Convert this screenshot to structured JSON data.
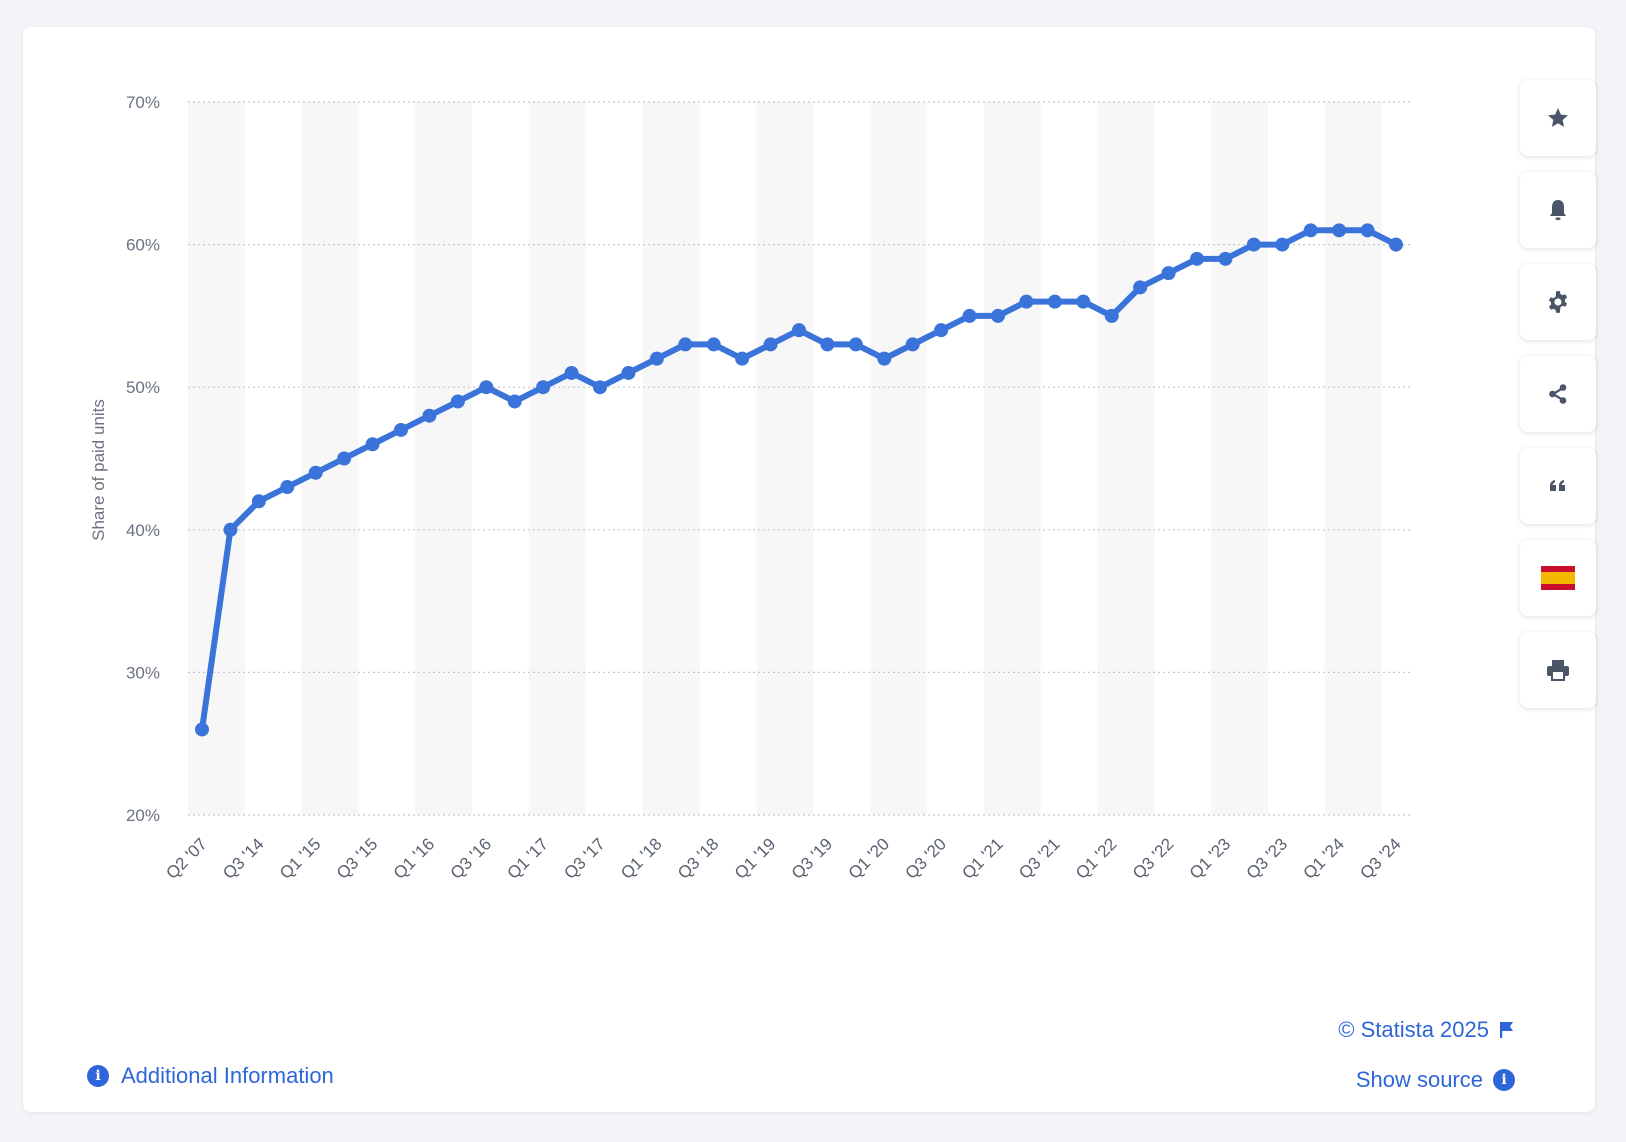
{
  "chart_data": {
    "type": "line",
    "ylabel": "Share of paid units",
    "ylim": [
      20,
      70
    ],
    "yticks": [
      "70%",
      "60%",
      "50%",
      "40%",
      "30%",
      "20%"
    ],
    "ytick_values": [
      70,
      60,
      50,
      40,
      30,
      20
    ],
    "xtick_labels": [
      "Q2 '07",
      "Q3 '14",
      "Q1 '15",
      "Q3 '15",
      "Q1 '16",
      "Q3 '16",
      "Q1 '17",
      "Q3 '17",
      "Q1 '18",
      "Q3 '18",
      "Q1 '19",
      "Q3 '19",
      "Q1 '20",
      "Q3 '20",
      "Q1 '21",
      "Q3 '21",
      "Q1 '22",
      "Q3 '22",
      "Q1 '23",
      "Q3 '23",
      "Q1 '24",
      "Q3 '24"
    ],
    "categories": [
      "Q2 '07",
      "Q2 '14",
      "Q3 '14",
      "Q4 '14",
      "Q1 '15",
      "Q2 '15",
      "Q3 '15",
      "Q4 '15",
      "Q1 '16",
      "Q2 '16",
      "Q3 '16",
      "Q4 '16",
      "Q1 '17",
      "Q2 '17",
      "Q3 '17",
      "Q4 '17",
      "Q1 '18",
      "Q2 '18",
      "Q3 '18",
      "Q4 '18",
      "Q1 '19",
      "Q2 '19",
      "Q3 '19",
      "Q4 '19",
      "Q1 '20",
      "Q2 '20",
      "Q3 '20",
      "Q4 '20",
      "Q1 '21",
      "Q2 '21",
      "Q3 '21",
      "Q4 '21",
      "Q1 '22",
      "Q2 '22",
      "Q3 '22",
      "Q4 '22",
      "Q1 '23",
      "Q2 '23",
      "Q3 '23",
      "Q4 '23",
      "Q1 '24",
      "Q2 '24",
      "Q3 '24"
    ],
    "series": [
      {
        "values": [
          26,
          40,
          42,
          43,
          44,
          45,
          46,
          47,
          48,
          49,
          50,
          49,
          50,
          51,
          50,
          51,
          52,
          53,
          53,
          52,
          53,
          54,
          53,
          53,
          52,
          53,
          54,
          55,
          55,
          56,
          56,
          56,
          55,
          57,
          58,
          59,
          59,
          60,
          60,
          61,
          61,
          61,
          60
        ]
      }
    ],
    "grid": true,
    "line_color": "#3a73d9"
  },
  "toolbar": [
    {
      "icon": "star-icon"
    },
    {
      "icon": "bell-icon"
    },
    {
      "icon": "gear-icon"
    },
    {
      "icon": "share-icon"
    },
    {
      "icon": "quote-icon"
    },
    {
      "icon": "spain-flag-icon"
    },
    {
      "icon": "print-icon"
    }
  ],
  "footer": {
    "credit": "© Statista 2025",
    "show_source": "Show source",
    "additional_info": "Additional Information"
  }
}
